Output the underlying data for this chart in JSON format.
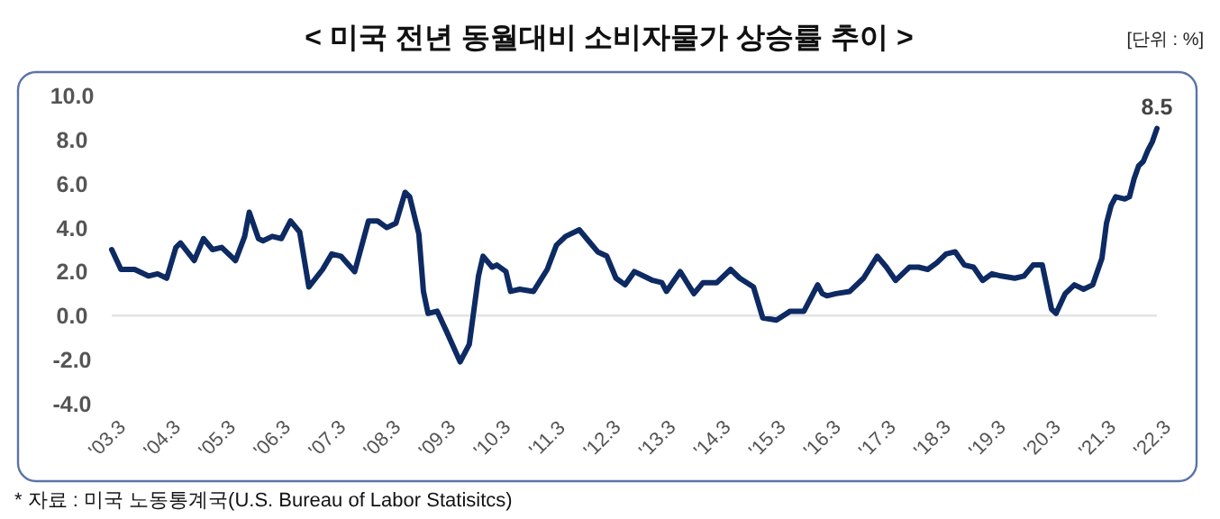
{
  "chart_data": {
    "type": "line",
    "title": "< 미국 전년 동월대비 소비자물가 상승률 추이 >",
    "annotations": [
      "[단위 : %]",
      "* 자료 : 미국 노동통계국(U.S. Bureau of Labor Statisitcs)",
      {
        "text": "8.5",
        "x": "2022-03",
        "y": 8.5
      }
    ],
    "series": [
      {
        "color": "#0d2a63",
        "x": [
          "2003-03",
          "2003-05",
          "2003-08",
          "2003-11",
          "2004-01",
          "2004-03",
          "2004-05",
          "2004-06",
          "2004-09",
          "2004-11",
          "2005-01",
          "2005-03",
          "2005-06",
          "2005-08",
          "2005-09",
          "2005-11",
          "2005-12",
          "2006-02",
          "2006-04",
          "2006-06",
          "2006-08",
          "2006-10",
          "2007-01",
          "2007-03",
          "2007-05",
          "2007-08",
          "2007-11",
          "2008-01",
          "2008-03",
          "2008-05",
          "2008-07",
          "2008-08",
          "2008-10",
          "2008-11",
          "2008-12",
          "2009-02",
          "2009-04",
          "2009-07",
          "2009-09",
          "2009-11",
          "2009-12",
          "2010-02",
          "2010-03",
          "2010-05",
          "2010-06",
          "2010-08",
          "2010-11",
          "2011-02",
          "2011-04",
          "2011-06",
          "2011-09",
          "2011-11",
          "2012-01",
          "2012-03",
          "2012-05",
          "2012-07",
          "2012-09",
          "2012-11",
          "2013-01",
          "2013-03",
          "2013-04",
          "2013-07",
          "2013-10",
          "2013-12",
          "2014-03",
          "2014-06",
          "2014-08",
          "2014-11",
          "2015-01",
          "2015-04",
          "2015-07",
          "2015-10",
          "2016-01",
          "2016-02",
          "2016-03",
          "2016-05",
          "2016-08",
          "2016-11",
          "2017-02",
          "2017-04",
          "2017-06",
          "2017-09",
          "2017-11",
          "2018-01",
          "2018-03",
          "2018-05",
          "2018-07",
          "2018-09",
          "2018-11",
          "2019-01",
          "2019-03",
          "2019-05",
          "2019-08",
          "2019-10",
          "2019-12",
          "2020-02",
          "2020-04",
          "2020-05",
          "2020-07",
          "2020-09",
          "2020-11",
          "2021-01",
          "2021-03",
          "2021-04",
          "2021-05",
          "2021-06",
          "2021-08",
          "2021-09",
          "2021-10",
          "2021-11",
          "2021-12",
          "2022-01",
          "2022-02",
          "2022-03"
        ],
        "values": [
          3.0,
          2.1,
          2.1,
          1.8,
          1.9,
          1.7,
          3.1,
          3.3,
          2.5,
          3.5,
          3.0,
          3.1,
          2.5,
          3.6,
          4.7,
          3.5,
          3.4,
          3.6,
          3.5,
          4.3,
          3.8,
          1.3,
          2.1,
          2.8,
          2.7,
          2.0,
          4.3,
          4.3,
          4.0,
          4.2,
          5.6,
          5.4,
          3.7,
          1.1,
          0.1,
          0.2,
          -0.7,
          -2.1,
          -1.3,
          1.8,
          2.7,
          2.2,
          2.3,
          2.0,
          1.1,
          1.2,
          1.1,
          2.1,
          3.2,
          3.6,
          3.9,
          3.4,
          2.9,
          2.7,
          1.7,
          1.4,
          2.0,
          1.8,
          1.6,
          1.5,
          1.1,
          2.0,
          1.0,
          1.5,
          1.5,
          2.1,
          1.7,
          1.3,
          -0.1,
          -0.2,
          0.2,
          0.2,
          1.4,
          1.0,
          0.9,
          1.0,
          1.1,
          1.7,
          2.7,
          2.2,
          1.6,
          2.2,
          2.2,
          2.1,
          2.4,
          2.8,
          2.9,
          2.3,
          2.2,
          1.6,
          1.9,
          1.8,
          1.7,
          1.8,
          2.3,
          2.3,
          0.3,
          0.1,
          1.0,
          1.4,
          1.2,
          1.4,
          2.6,
          4.2,
          5.0,
          5.4,
          5.3,
          5.4,
          6.2,
          6.8,
          7.0,
          7.5,
          7.9,
          8.5
        ]
      }
    ],
    "xlim": [
      "2003-03",
      "2022-03"
    ],
    "xticks": [
      {
        "value": "2003-03",
        "label": "'03.3"
      },
      {
        "value": "2004-03",
        "label": "'04.3"
      },
      {
        "value": "2005-03",
        "label": "'05.3"
      },
      {
        "value": "2006-03",
        "label": "'06.3"
      },
      {
        "value": "2007-03",
        "label": "'07.3"
      },
      {
        "value": "2008-03",
        "label": "'08.3"
      },
      {
        "value": "2009-03",
        "label": "'09.3"
      },
      {
        "value": "2010-03",
        "label": "'10.3"
      },
      {
        "value": "2011-03",
        "label": "'11.3"
      },
      {
        "value": "2012-03",
        "label": "'12.3"
      },
      {
        "value": "2013-03",
        "label": "'13.3"
      },
      {
        "value": "2014-03",
        "label": "'14.3"
      },
      {
        "value": "2015-03",
        "label": "'15.3"
      },
      {
        "value": "2016-03",
        "label": "'16.3"
      },
      {
        "value": "2017-03",
        "label": "'17.3"
      },
      {
        "value": "2018-03",
        "label": "'18.3"
      },
      {
        "value": "2019-03",
        "label": "'19.3"
      },
      {
        "value": "2020-03",
        "label": "'20.3"
      },
      {
        "value": "2021-03",
        "label": "'21.3"
      },
      {
        "value": "2022-03",
        "label": "'22.3"
      }
    ],
    "ylim": [
      -4,
      10
    ],
    "yticks": [
      {
        "value": -4,
        "label": "-4.0"
      },
      {
        "value": -2,
        "label": "-2.0"
      },
      {
        "value": 0,
        "label": "0.0"
      },
      {
        "value": 2,
        "label": "2.0"
      },
      {
        "value": 4,
        "label": "4.0"
      },
      {
        "value": 6,
        "label": "6.0"
      },
      {
        "value": 8,
        "label": "8.0"
      },
      {
        "value": 10,
        "label": "10.0"
      }
    ],
    "ref_lines": [
      {
        "axis": "y",
        "value": 0,
        "color": "#e3e3e3"
      }
    ],
    "grid": false
  }
}
